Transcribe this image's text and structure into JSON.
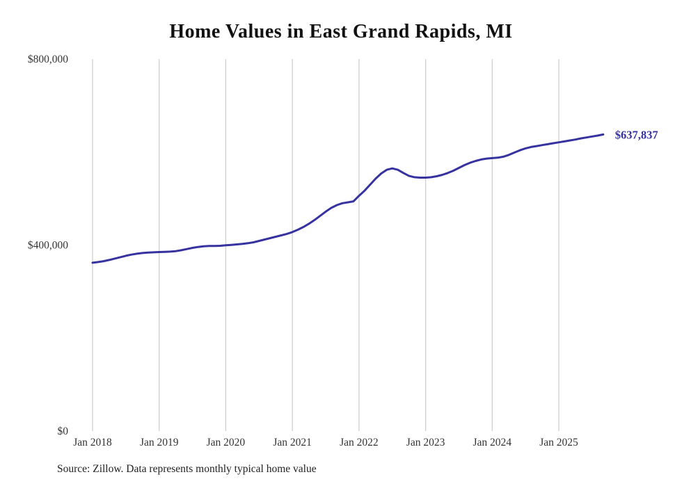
{
  "title": "Home Values in East Grand Rapids, MI",
  "source_note": "Source: Zillow. Data represents monthly typical home value",
  "colors": {
    "line": "#3632a0",
    "grid": "#cccccc",
    "tick_text": "#333333",
    "title_text": "#111111",
    "source_text": "#222222"
  },
  "chart_data": {
    "type": "line",
    "title": "Home Values in East Grand Rapids, MI",
    "xlabel": "",
    "ylabel": "",
    "ylim": [
      0,
      800000
    ],
    "grid": "vertical-only",
    "legend": "none",
    "y_ticks": [
      {
        "value": 0,
        "label": "$0"
      },
      {
        "value": 400000,
        "label": "$400,000"
      },
      {
        "value": 800000,
        "label": "$800,000"
      }
    ],
    "x_ticks": [
      {
        "month_index": 0,
        "label": "Jan 2018"
      },
      {
        "month_index": 12,
        "label": "Jan 2019"
      },
      {
        "month_index": 24,
        "label": "Jan 2020"
      },
      {
        "month_index": 36,
        "label": "Jan 2021"
      },
      {
        "month_index": 48,
        "label": "Jan 2022"
      },
      {
        "month_index": 60,
        "label": "Jan 2023"
      },
      {
        "month_index": 72,
        "label": "Jan 2024"
      },
      {
        "month_index": 84,
        "label": "Jan 2025"
      }
    ],
    "last_point_label": "$637,837",
    "last_value": 637837,
    "series": [
      {
        "name": "Monthly typical home value",
        "color": "#3632a0",
        "start_month": "2018-01",
        "values": [
          362000,
          363500,
          365500,
          368000,
          371000,
          374000,
          377000,
          379500,
          381500,
          383000,
          384000,
          384500,
          385000,
          385500,
          386000,
          387000,
          389000,
          391500,
          394000,
          396000,
          397500,
          398000,
          398000,
          398500,
          399500,
          400500,
          401500,
          402500,
          404000,
          406000,
          409000,
          412000,
          415000,
          418000,
          421000,
          424000,
          428000,
          433000,
          439000,
          446000,
          454000,
          463000,
          472000,
          480000,
          486000,
          490000,
          492000,
          494000,
          506000,
          517000,
          530000,
          543000,
          554000,
          562000,
          565000,
          562000,
          555000,
          549000,
          546000,
          545000,
          545000,
          546000,
          548000,
          551000,
          555000,
          560000,
          566000,
          572000,
          577000,
          581000,
          584000,
          586000,
          587000,
          588000,
          590000,
          594000,
          599000,
          604000,
          608000,
          611000,
          613000,
          615000,
          617000,
          619000,
          621000,
          623000,
          625000,
          627000,
          629500,
          631500,
          633500,
          635500,
          637837
        ]
      }
    ]
  }
}
